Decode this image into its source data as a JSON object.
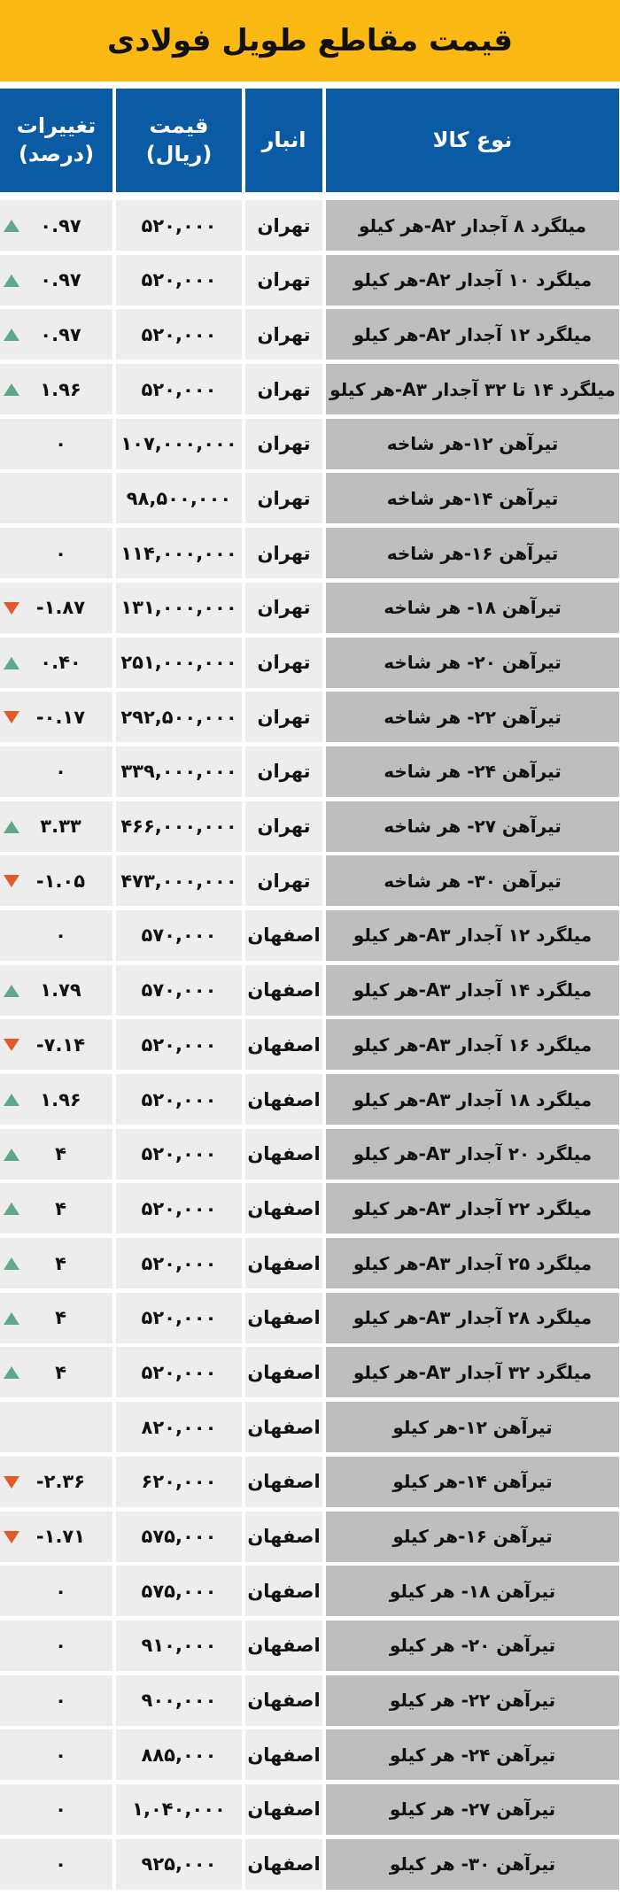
{
  "title": "قیمت مقاطع طویل فولادی",
  "columns": {
    "change": "تغییرات (درصد)",
    "price": "قیمت (ریال)",
    "anbar": "انبار",
    "name": "نوع کالا"
  },
  "colors": {
    "title_bg": "#FDB913",
    "header_bg": "#0A5BA3",
    "up": "#5FA88A",
    "down": "#E05A2B"
  },
  "rows": [
    {
      "name": "میلگرد ۸ آجدار A۲-هر کیلو",
      "anbar": "تهران",
      "price": "۵۲۰,۰۰۰",
      "change": "۰.۹۷",
      "trend": "up"
    },
    {
      "name": "میلگرد ۱۰ آجدار A۲-هر کیلو",
      "anbar": "تهران",
      "price": "۵۲۰,۰۰۰",
      "change": "۰.۹۷",
      "trend": "up"
    },
    {
      "name": "میلگرد ۱۲ آجدار A۲-هر کیلو",
      "anbar": "تهران",
      "price": "۵۲۰,۰۰۰",
      "change": "۰.۹۷",
      "trend": "up"
    },
    {
      "name": "میلگرد ۱۴ تا ۳۲ آجدار A۳-هر کیلو",
      "anbar": "تهران",
      "price": "۵۲۰,۰۰۰",
      "change": "۱.۹۶",
      "trend": "up"
    },
    {
      "name": "تیرآهن ۱۲-هر شاخه",
      "anbar": "تهران",
      "price": "۱۰۷,۰۰۰,۰۰۰",
      "change": "۰",
      "trend": ""
    },
    {
      "name": "تیرآهن ۱۴-هر شاخه",
      "anbar": "تهران",
      "price": "۹۸,۵۰۰,۰۰۰",
      "change": "",
      "trend": ""
    },
    {
      "name": "تیرآهن ۱۶-هر شاخه",
      "anbar": "تهران",
      "price": "۱۱۴,۰۰۰,۰۰۰",
      "change": "۰",
      "trend": ""
    },
    {
      "name": "تیرآهن ۱۸- هر شاخه",
      "anbar": "تهران",
      "price": "۱۳۱,۰۰۰,۰۰۰",
      "change": "-۱.۸۷",
      "trend": "down"
    },
    {
      "name": "تیرآهن ۲۰- هر شاخه",
      "anbar": "تهران",
      "price": "۲۵۱,۰۰۰,۰۰۰",
      "change": "۰.۴۰",
      "trend": "up"
    },
    {
      "name": "تیرآهن ۲۲- هر شاخه",
      "anbar": "تهران",
      "price": "۲۹۲,۵۰۰,۰۰۰",
      "change": "-۰.۱۷",
      "trend": "down"
    },
    {
      "name": "تیرآهن ۲۴- هر شاخه",
      "anbar": "تهران",
      "price": "۳۳۹,۰۰۰,۰۰۰",
      "change": "۰",
      "trend": ""
    },
    {
      "name": "تیرآهن ۲۷- هر شاخه",
      "anbar": "تهران",
      "price": "۴۶۶,۰۰۰,۰۰۰",
      "change": "۳.۳۳",
      "trend": "up"
    },
    {
      "name": "تیرآهن ۳۰- هر شاخه",
      "anbar": "تهران",
      "price": "۴۷۳,۰۰۰,۰۰۰",
      "change": "-۱.۰۵",
      "trend": "down"
    },
    {
      "name": "میلگرد ۱۲ آجدار A۳-هر کیلو",
      "anbar": "اصفهان",
      "price": "۵۷۰,۰۰۰",
      "change": "۰",
      "trend": ""
    },
    {
      "name": "میلگرد ۱۴ آجدار A۳-هر کیلو",
      "anbar": "اصفهان",
      "price": "۵۷۰,۰۰۰",
      "change": "۱.۷۹",
      "trend": "up"
    },
    {
      "name": "میلگرد ۱۶ آجدار A۳-هر کیلو",
      "anbar": "اصفهان",
      "price": "۵۲۰,۰۰۰",
      "change": "-۷.۱۴",
      "trend": "down"
    },
    {
      "name": "میلگرد ۱۸ آجدار A۳-هر کیلو",
      "anbar": "اصفهان",
      "price": "۵۲۰,۰۰۰",
      "change": "۱.۹۶",
      "trend": "up"
    },
    {
      "name": "میلگرد ۲۰ آجدار A۳-هر کیلو",
      "anbar": "اصفهان",
      "price": "۵۲۰,۰۰۰",
      "change": "۴",
      "trend": "up"
    },
    {
      "name": "میلگرد ۲۲ آجدار A۳-هر کیلو",
      "anbar": "اصفهان",
      "price": "۵۲۰,۰۰۰",
      "change": "۴",
      "trend": "up"
    },
    {
      "name": "میلگرد ۲۵ آجدار A۳-هر کیلو",
      "anbar": "اصفهان",
      "price": "۵۲۰,۰۰۰",
      "change": "۴",
      "trend": "up"
    },
    {
      "name": "میلگرد ۲۸ آجدار A۳-هر کیلو",
      "anbar": "اصفهان",
      "price": "۵۲۰,۰۰۰",
      "change": "۴",
      "trend": "up"
    },
    {
      "name": "میلگرد ۳۲ آجدار A۳-هر کیلو",
      "anbar": "اصفهان",
      "price": "۵۲۰,۰۰۰",
      "change": "۴",
      "trend": "up"
    },
    {
      "name": "تیرآهن ۱۲-هر کیلو",
      "anbar": "اصفهان",
      "price": "۸۲۰,۰۰۰",
      "change": "",
      "trend": ""
    },
    {
      "name": "تیرآهن ۱۴-هر کیلو",
      "anbar": "اصفهان",
      "price": "۶۲۰,۰۰۰",
      "change": "-۲.۳۶",
      "trend": "down"
    },
    {
      "name": "تیرآهن ۱۶-هر کیلو",
      "anbar": "اصفهان",
      "price": "۵۷۵,۰۰۰",
      "change": "-۱.۷۱",
      "trend": "down"
    },
    {
      "name": "تیرآهن ۱۸- هر کیلو",
      "anbar": "اصفهان",
      "price": "۵۷۵,۰۰۰",
      "change": "۰",
      "trend": ""
    },
    {
      "name": "تیرآهن ۲۰- هر کیلو",
      "anbar": "اصفهان",
      "price": "۹۱۰,۰۰۰",
      "change": "۰",
      "trend": ""
    },
    {
      "name": "تیرآهن ۲۲- هر کیلو",
      "anbar": "اصفهان",
      "price": "۹۰۰,۰۰۰",
      "change": "۰",
      "trend": ""
    },
    {
      "name": "تیرآهن ۲۴- هر کیلو",
      "anbar": "اصفهان",
      "price": "۸۸۵,۰۰۰",
      "change": "۰",
      "trend": ""
    },
    {
      "name": "تیرآهن ۲۷- هر کیلو",
      "anbar": "اصفهان",
      "price": "۱,۰۴۰,۰۰۰",
      "change": "۰",
      "trend": ""
    },
    {
      "name": "تیرآهن ۳۰- هر کیلو",
      "anbar": "اصفهان",
      "price": "۹۲۵,۰۰۰",
      "change": "۰",
      "trend": ""
    }
  ]
}
